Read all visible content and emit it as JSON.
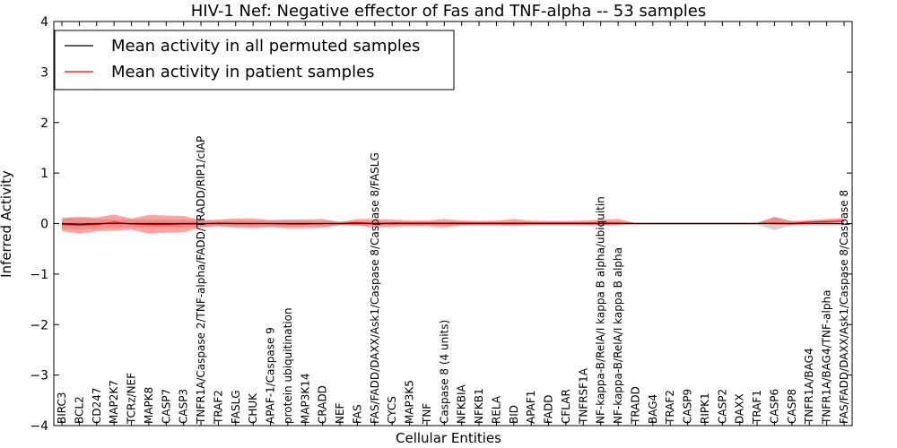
{
  "chart_data": {
    "type": "line",
    "title": "HIV-1 Nef: Negative effector of Fas and TNF-alpha -- 53 samples",
    "xlabel": "Cellular Entities",
    "ylabel": "Inferred Activity",
    "ylim": [
      -4,
      4
    ],
    "yticks": [
      -4,
      -3,
      -2,
      -1,
      0,
      1,
      2,
      3,
      4
    ],
    "ytick_labels": [
      "−4",
      "−3",
      "−2",
      "−1",
      "0",
      "1",
      "2",
      "3",
      "4"
    ],
    "categories": [
      "BIRC3",
      "BCL2",
      "CD247",
      "MAP2K7",
      "TCRz/NEF",
      "MAPK8",
      "CASP7",
      "CASP3",
      "TNFR1A/Caspase 2/TNF-alpha/FADD/TRADD/RIP1/cIAP",
      "TRAF2",
      "FASLG",
      "CHUK",
      "APAF-1/Caspase 9",
      "protein ubiquitination",
      "MAP3K14",
      "CRADD",
      "NEF",
      "FAS",
      "FAS/FADD/DAXX/Ask1/Caspase 8/Caspase 8/FASLG",
      "CYCS",
      "MAP3K5",
      "TNF",
      "Caspase 8 (4 units)",
      "NFKBIA",
      "NFKB1",
      "RELA",
      "BID",
      "APAF1",
      "FADD",
      "CFLAR",
      "TNFRSF1A",
      "NF-kappa-B/RelA/I kappa B alpha/ubiquitin",
      "NF-kappa-B/RelA/I kappa B alpha",
      "TRADD",
      "BAG4",
      "TRAF2",
      "CASP9",
      "RIPK1",
      "CASP2",
      "DAXX",
      "TRAF1",
      "CASP6",
      "CASP8",
      "TNFR1A/BAG4",
      "TNFR1A/BAG4/TNF-alpha",
      "FAS/FADD/DAXX/Ask1/Caspase 8/Caspase 8"
    ],
    "series": [
      {
        "name": "Mean activity in all permuted samples",
        "color": "#000000",
        "values": [
          0,
          -0.01,
          0,
          0,
          0,
          0,
          0,
          0,
          0,
          0,
          0,
          0,
          0,
          0,
          0,
          0,
          0,
          0,
          0,
          0,
          0,
          0,
          0,
          0,
          0,
          0,
          0,
          0,
          0,
          0,
          0,
          0,
          0,
          0,
          0,
          0,
          0,
          0,
          0,
          0,
          0,
          0,
          0,
          0,
          0,
          0
        ],
        "band_low": [
          -0.1,
          -0.12,
          -0.09,
          -0.08,
          -0.08,
          -0.08,
          -0.08,
          -0.08,
          -0.06,
          -0.05,
          -0.06,
          -0.06,
          -0.06,
          -0.06,
          -0.05,
          -0.05,
          -0.04,
          -0.04,
          -0.04,
          -0.04,
          -0.04,
          -0.04,
          -0.04,
          -0.04,
          -0.03,
          -0.03,
          -0.03,
          -0.03,
          -0.03,
          -0.03,
          -0.03,
          -0.04,
          -0.04,
          -0.02,
          -0.02,
          -0.02,
          -0.02,
          -0.02,
          -0.02,
          -0.02,
          -0.02,
          -0.13,
          -0.04,
          -0.04,
          -0.04,
          -0.04
        ],
        "band_high": [
          0.1,
          0.12,
          0.09,
          0.08,
          0.08,
          0.08,
          0.08,
          0.08,
          0.06,
          0.05,
          0.06,
          0.06,
          0.06,
          0.06,
          0.05,
          0.05,
          0.04,
          0.04,
          0.04,
          0.04,
          0.04,
          0.04,
          0.04,
          0.04,
          0.03,
          0.03,
          0.03,
          0.03,
          0.03,
          0.03,
          0.03,
          0.04,
          0.04,
          0.02,
          0.02,
          0.02,
          0.02,
          0.02,
          0.02,
          0.02,
          0.02,
          0.13,
          0.04,
          0.04,
          0.04,
          0.04
        ]
      },
      {
        "name": "Mean activity in patient samples",
        "color": "#ff0000",
        "values": [
          -0.02,
          -0.03,
          -0.02,
          0.03,
          -0.01,
          -0.02,
          -0.02,
          -0.01,
          -0.01,
          0.01,
          0,
          0,
          0,
          -0.01,
          -0.01,
          0,
          0,
          0.02,
          0,
          0.01,
          0.01,
          0.01,
          0.01,
          0.01,
          0.01,
          0.01,
          0.01,
          0.01,
          0.01,
          0.01,
          0.01,
          0.01,
          0.01,
          0,
          0,
          0,
          0,
          0,
          0,
          0,
          0,
          0.01,
          0,
          0.03,
          0.04,
          0.05
        ],
        "band_low": [
          -0.15,
          -0.2,
          -0.15,
          -0.14,
          -0.12,
          -0.2,
          -0.18,
          -0.17,
          -0.08,
          -0.05,
          -0.08,
          -0.09,
          -0.07,
          -0.09,
          -0.09,
          -0.08,
          -0.03,
          -0.04,
          -0.08,
          -0.06,
          -0.05,
          -0.05,
          -0.07,
          -0.04,
          -0.04,
          -0.04,
          -0.05,
          -0.03,
          -0.03,
          -0.03,
          -0.03,
          -0.04,
          -0.02,
          0,
          0,
          0,
          0,
          0,
          0,
          0,
          0,
          -0.02,
          -0.03,
          0,
          0.01,
          0.03
        ],
        "band_high": [
          0.11,
          0.13,
          0.12,
          0.18,
          0.1,
          0.17,
          0.16,
          0.15,
          0.07,
          0.08,
          0.1,
          0.1,
          0.07,
          0.08,
          0.08,
          0.09,
          0.03,
          0.09,
          0.09,
          0.08,
          0.06,
          0.06,
          0.09,
          0.06,
          0.05,
          0.06,
          0.09,
          0.06,
          0.05,
          0.05,
          0.06,
          0.08,
          0.09,
          0.01,
          0.01,
          0.01,
          0.01,
          0.01,
          0.01,
          0.01,
          0.01,
          0.13,
          0.05,
          0.07,
          0.09,
          0.11
        ]
      }
    ],
    "band_colors": {
      "permuted": "#aaaaaa",
      "patient": "#ff5555"
    },
    "legend_position": "top-left",
    "grid": false
  }
}
